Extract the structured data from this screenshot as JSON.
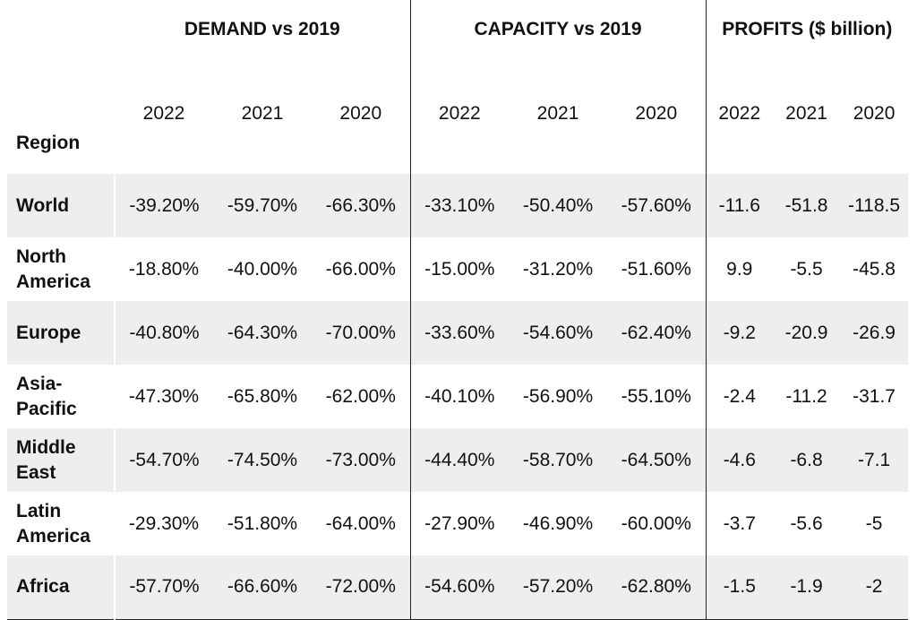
{
  "chart_data": {
    "type": "table",
    "groups": [
      "DEMAND vs 2019",
      "CAPACITY vs 2019",
      "PROFITS ($ billion)"
    ],
    "region_header": "Region",
    "years": [
      "2022",
      "2021",
      "2020",
      "2022",
      "2021",
      "2020",
      "2022",
      "2021",
      "2020"
    ],
    "rows": [
      {
        "region": "World",
        "values": [
          "-39.20%",
          "-59.70%",
          "-66.30%",
          "-33.10%",
          "-50.40%",
          "-57.60%",
          "-11.6",
          "-51.8",
          "-118.5"
        ]
      },
      {
        "region": "North America",
        "values": [
          "-18.80%",
          "-40.00%",
          "-66.00%",
          "-15.00%",
          "-31.20%",
          "-51.60%",
          "9.9",
          "-5.5",
          "-45.8"
        ]
      },
      {
        "region": "Europe",
        "values": [
          "-40.80%",
          "-64.30%",
          "-70.00%",
          "-33.60%",
          "-54.60%",
          "-62.40%",
          "-9.2",
          "-20.9",
          "-26.9"
        ]
      },
      {
        "region": "Asia-Pacific",
        "values": [
          "-47.30%",
          "-65.80%",
          "-62.00%",
          "-40.10%",
          "-56.90%",
          "-55.10%",
          "-2.4",
          "-11.2",
          "-31.7"
        ]
      },
      {
        "region": "Middle East",
        "values": [
          "-54.70%",
          "-74.50%",
          "-73.00%",
          "-44.40%",
          "-58.70%",
          "-64.50%",
          "-4.6",
          "-6.8",
          "-7.1"
        ]
      },
      {
        "region": "Latin America",
        "values": [
          "-29.30%",
          "-51.80%",
          "-64.00%",
          "-27.90%",
          "-46.90%",
          "-60.00%",
          "-3.7",
          "-5.6",
          "-5"
        ]
      },
      {
        "region": "Africa",
        "values": [
          "-57.70%",
          "-66.60%",
          "-72.00%",
          "-54.60%",
          "-57.20%",
          "-62.80%",
          "-1.5",
          "-1.9",
          "-2"
        ]
      }
    ],
    "colors": {
      "shaded_row": "#eeeeee",
      "rule": "#222222",
      "text": "#111111"
    }
  }
}
